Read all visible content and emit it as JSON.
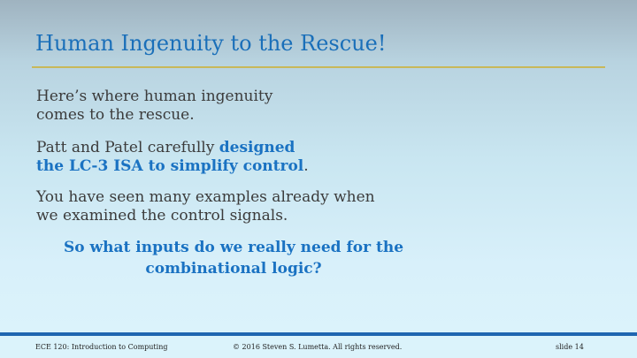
{
  "slide": {
    "title": "Human Ingenuity to the Rescue!",
    "paragraphs": {
      "p1": {
        "line1": "Here’s where human ingenuity",
        "line2": "comes to the rescue."
      },
      "p2": {
        "line1_plain": "Patt and Patel carefully ",
        "line1_bold": "designed",
        "line2_bold": "the LC-3 ISA to simplify control",
        "line2_end": "."
      },
      "p3": {
        "line1": "You have seen many examples already when",
        "line2": "we examined the control signals."
      },
      "p4": {
        "line1": "So what inputs do we really need for the",
        "line2": "combinational logic?"
      }
    }
  },
  "footer": {
    "course": "ECE 120: Introduction to Computing",
    "copyright": "© 2016 Steven S. Lumetta.  All rights reserved.",
    "slide_number": "slide 14"
  },
  "colors": {
    "title": "#1a6fb9",
    "highlight": "#1a72c2",
    "rule": "#c8b85a",
    "footer_bar": "#1f66b0"
  }
}
